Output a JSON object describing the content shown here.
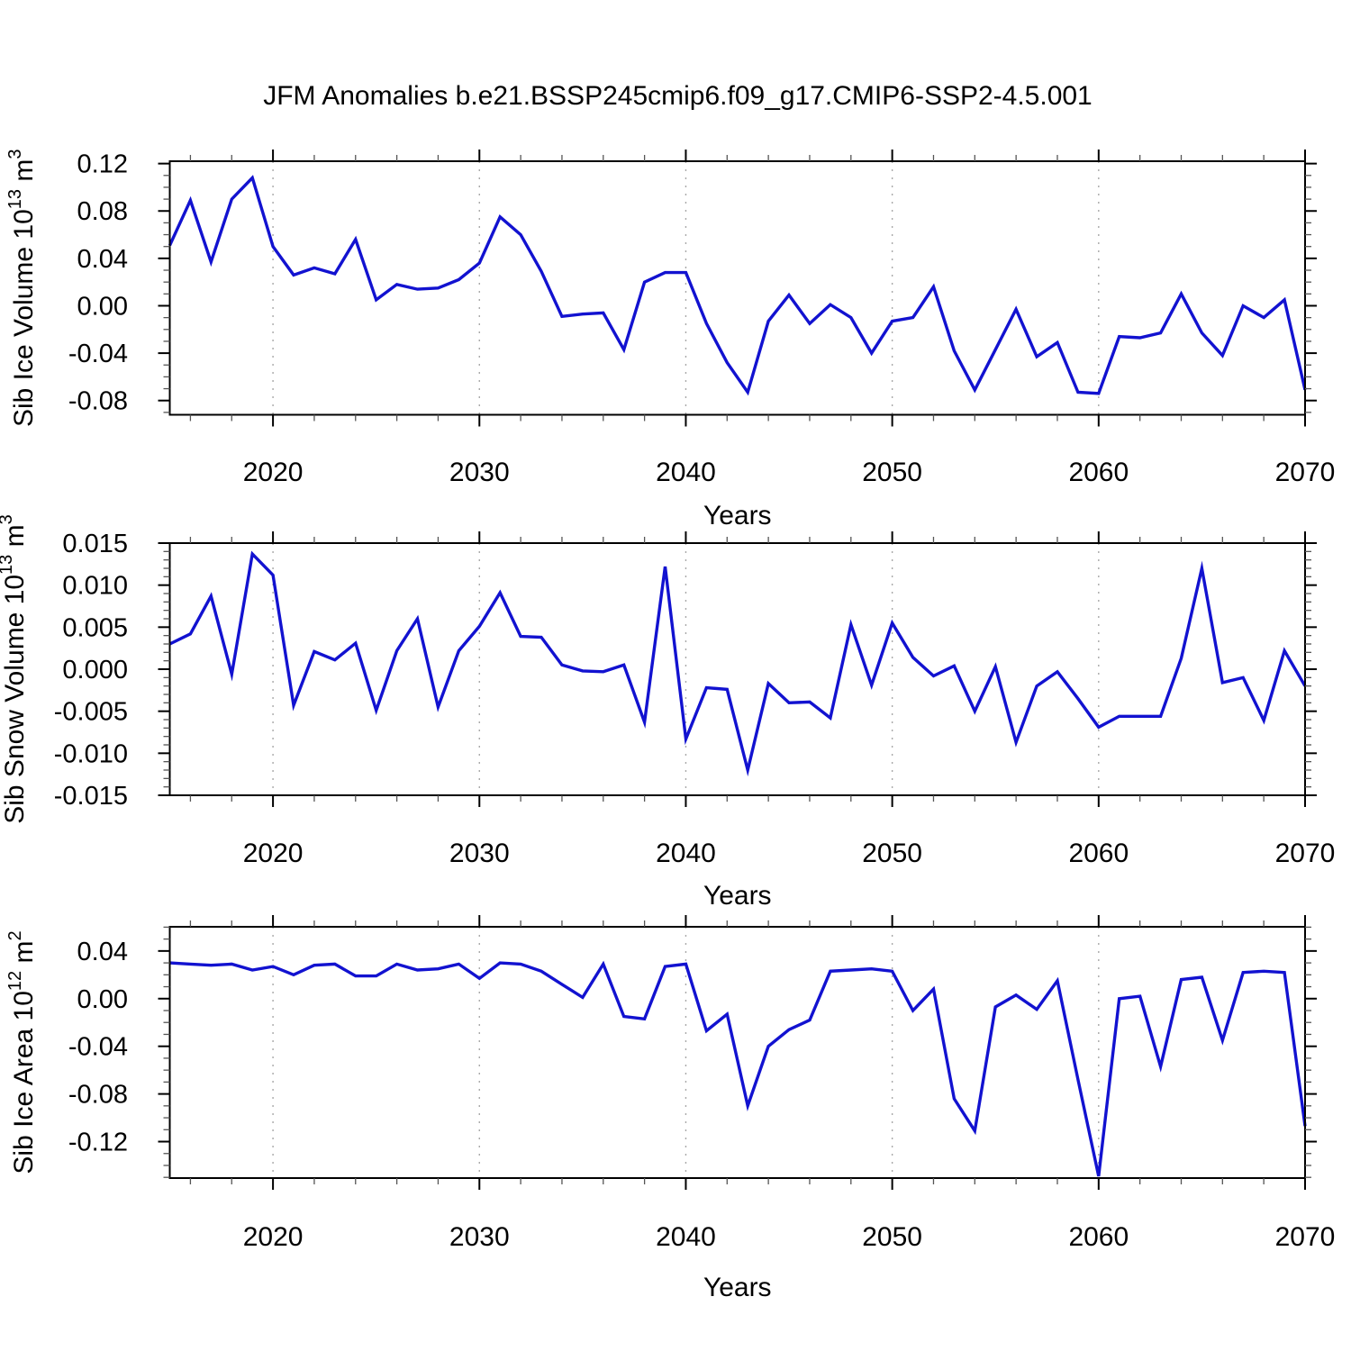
{
  "title": "JFM Anomalies b.e21.BSSP245cmip6.f09_g17.CMIP6-SSP2-4.5.001",
  "colors": {
    "line": "#1212d0",
    "grid": "#a8a8a8",
    "axis": "#000000",
    "minor_tick": "#555555"
  },
  "x_axis": {
    "label": "Years",
    "start_year": 2015,
    "end_year": 2070,
    "major_ticks": [
      2020,
      2030,
      2040,
      2050,
      2060,
      2070
    ],
    "minor_step_years": 2,
    "gridline_years": [
      2020,
      2030,
      2040,
      2050,
      2060
    ]
  },
  "chart_data": [
    {
      "type": "line",
      "name": "sib-ice-volume",
      "ylabel": "Sib Ice Volume 10^13 m^3",
      "ylabel_parts": [
        "Sib Ice Volume 10",
        "13",
        " m",
        "3"
      ],
      "ytick_labels": [
        "0.12",
        "0.08",
        "0.04",
        "0.00",
        "-0.04",
        "-0.08"
      ],
      "ytick_values": [
        0.12,
        0.08,
        0.04,
        0.0,
        -0.04,
        -0.08
      ],
      "yminor_step": 0.01,
      "ylim": [
        -0.092,
        0.122
      ],
      "values": [
        0.051,
        0.089,
        0.037,
        0.09,
        0.108,
        0.05,
        0.026,
        0.032,
        0.027,
        0.056,
        0.005,
        0.018,
        0.014,
        0.015,
        0.022,
        0.036,
        0.075,
        0.06,
        0.029,
        -0.009,
        -0.007,
        -0.006,
        -0.037,
        0.02,
        0.028,
        0.028,
        -0.015,
        -0.048,
        -0.073,
        -0.013,
        0.009,
        -0.015,
        0.001,
        -0.01,
        -0.04,
        -0.013,
        -0.01,
        0.016,
        -0.038,
        -0.071,
        -0.037,
        -0.003,
        -0.043,
        -0.031,
        -0.073,
        -0.074,
        -0.026,
        -0.027,
        -0.023,
        0.01,
        -0.023,
        -0.042,
        0.0,
        -0.01,
        0.005,
        -0.071
      ]
    },
    {
      "type": "line",
      "name": "sib-snow-volume",
      "ylabel": "Sib Snow Volume 10^13 m^3",
      "ylabel_parts": [
        "Sib Snow Volume 10",
        "13",
        " m",
        "3"
      ],
      "ytick_labels": [
        "0.015",
        "0.010",
        "0.005",
        "0.000",
        "-0.005",
        "-0.010",
        "-0.015"
      ],
      "ytick_values": [
        0.015,
        0.01,
        0.005,
        0.0,
        -0.005,
        -0.01,
        -0.015
      ],
      "yminor_step": 0.001,
      "ylim": [
        -0.015,
        0.015
      ],
      "values": [
        0.003,
        0.0042,
        0.0087,
        -0.0006,
        0.0137,
        0.0112,
        -0.0043,
        0.0021,
        0.0011,
        0.0031,
        -0.0049,
        0.0022,
        0.006,
        -0.0045,
        0.0022,
        0.0051,
        0.0091,
        0.0039,
        0.0038,
        0.0005,
        -0.0002,
        -0.0003,
        0.0005,
        -0.0063,
        0.0122,
        -0.0083,
        -0.0022,
        -0.0024,
        -0.012,
        -0.0017,
        -0.004,
        -0.0039,
        -0.0058,
        0.0053,
        -0.0019,
        0.0055,
        0.0014,
        -0.0008,
        0.0004,
        -0.005,
        0.0003,
        -0.0087,
        -0.002,
        -0.0003,
        -0.0035,
        -0.0069,
        -0.0056,
        -0.0056,
        -0.0056,
        0.0013,
        0.012,
        -0.0016,
        -0.001,
        -0.0061,
        0.0022,
        -0.002
      ]
    },
    {
      "type": "line",
      "name": "sib-ice-area",
      "ylabel": "Sib Ice Area 10^12 m^2",
      "ylabel_parts": [
        "Sib Ice Area 10",
        "12",
        " m",
        "2"
      ],
      "ytick_labels": [
        "0.04",
        "0.00",
        "-0.04",
        "-0.08",
        "-0.12"
      ],
      "ytick_values": [
        0.04,
        0.0,
        -0.04,
        -0.08,
        -0.12
      ],
      "yminor_step": 0.01,
      "ylim": [
        -0.1506,
        0.0603
      ],
      "values": [
        0.03,
        0.029,
        0.028,
        0.029,
        0.024,
        0.027,
        0.02,
        0.028,
        0.029,
        0.019,
        0.019,
        0.029,
        0.024,
        0.025,
        0.029,
        0.017,
        0.03,
        0.029,
        0.023,
        0.012,
        0.001,
        0.029,
        -0.015,
        -0.017,
        0.027,
        0.029,
        -0.027,
        -0.013,
        -0.09,
        -0.04,
        -0.026,
        -0.018,
        0.023,
        0.024,
        0.025,
        0.023,
        -0.01,
        0.008,
        -0.084,
        -0.111,
        -0.007,
        0.003,
        -0.009,
        0.015,
        -0.068,
        -0.149,
        0.0,
        0.002,
        -0.057,
        0.016,
        0.018,
        -0.035,
        0.022,
        0.023,
        0.022,
        -0.107
      ]
    }
  ]
}
